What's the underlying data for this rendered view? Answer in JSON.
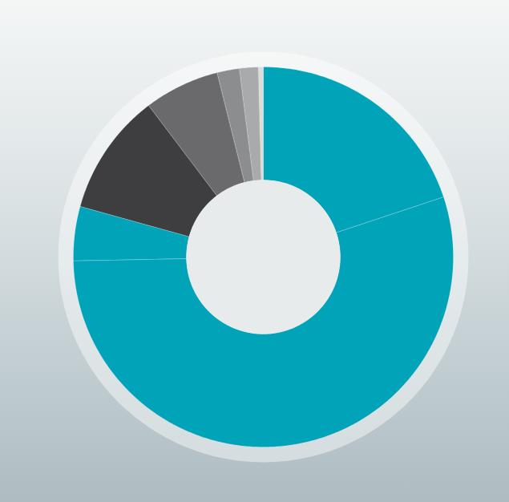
{
  "chart_data": {
    "type": "donut",
    "categories": [
      null,
      null,
      null,
      null,
      null,
      null,
      null,
      null
    ],
    "values": [
      19.9,
      54.8,
      4.6,
      10.4,
      6.4,
      1.9,
      1.6,
      0.4
    ],
    "colors": [
      "#00a3b7",
      "#00a3b7",
      "#00a3b7",
      "#3e3e41",
      "#6a6a6c",
      "#8c8d8f",
      "#a9aaac",
      "#dcdcdc"
    ],
    "tick_labels": false
  }
}
